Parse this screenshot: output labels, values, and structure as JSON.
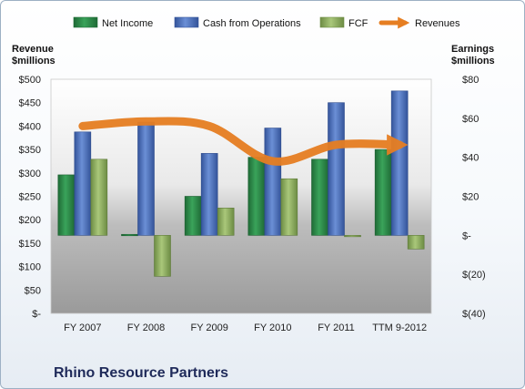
{
  "chart_data": {
    "type": "bar",
    "title": "Rhino Resource Partners",
    "categories": [
      "FY 2007",
      "FY 2008",
      "FY 2009",
      "FY 2010",
      "FY 2011",
      "TTM 9-2012"
    ],
    "left_axis": {
      "label_line1": "Revenue",
      "label_line2": "$millions",
      "ylim": [
        0,
        500
      ],
      "ticks": [
        500,
        450,
        400,
        350,
        300,
        250,
        200,
        150,
        100,
        50,
        0
      ],
      "tick_labels": [
        "$500",
        "$450",
        "$400",
        "$350",
        "$300",
        "$250",
        "$200",
        "$150",
        "$100",
        "$50",
        "$-"
      ]
    },
    "right_axis": {
      "label_line1": "Earnings",
      "label_line2": "$millions",
      "ylim": [
        -40,
        80
      ],
      "ticks": [
        80,
        60,
        40,
        20,
        0,
        -20,
        -40
      ],
      "tick_labels": [
        "$80",
        "$60",
        "$40",
        "$20",
        "$-",
        "$(20)",
        "$(40)"
      ]
    },
    "series": [
      {
        "name": "Net Income",
        "axis": "right",
        "kind": "bar",
        "color": "#2e8b4a",
        "values": [
          31,
          0.5,
          20,
          40,
          39,
          44
        ]
      },
      {
        "name": "Cash from Operations",
        "axis": "right",
        "kind": "bar",
        "color": "#4a6fb8",
        "values": [
          53,
          58,
          42,
          55,
          68,
          74
        ]
      },
      {
        "name": "FCF",
        "axis": "right",
        "kind": "bar",
        "color": "#8fb060",
        "values": [
          39,
          -21,
          14,
          29,
          0,
          -7
        ]
      },
      {
        "name": "Revenues",
        "axis": "left",
        "kind": "line",
        "color": "#e67e22",
        "values": [
          400,
          410,
          400,
          325,
          360,
          360
        ]
      }
    ],
    "legend_position": "top",
    "grid": false
  }
}
